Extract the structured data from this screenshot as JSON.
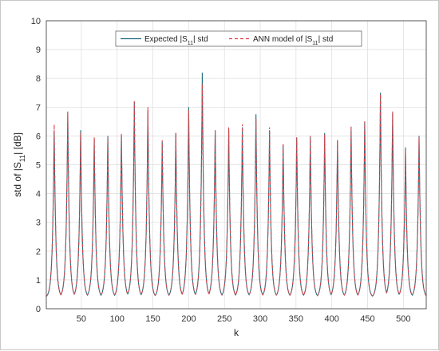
{
  "chart_data": {
    "type": "line",
    "xlabel": "k",
    "ylabel_parts": {
      "prefix": "std of |S",
      "subscript": "11",
      "suffix": "| [dB]"
    },
    "xlim": [
      1,
      532
    ],
    "ylim": [
      0,
      10
    ],
    "xticks": [
      50,
      100,
      150,
      200,
      250,
      300,
      350,
      400,
      450,
      500
    ],
    "yticks": [
      0,
      1,
      2,
      3,
      4,
      5,
      6,
      7,
      8,
      9,
      10
    ],
    "grid": true,
    "legend_position": "top-center",
    "baseline": 0.38,
    "legend": [
      {
        "prefix": "Expected |S",
        "subscript": "11",
        "suffix": "| std",
        "color": "#1f6e7e",
        "dash": "solid"
      },
      {
        "prefix": "ANN model of |S",
        "subscript": "11",
        "suffix": "| std",
        "color": "#d9444b",
        "dash": "dashed"
      }
    ],
    "peaks": [
      {
        "x": 12,
        "expected": 6.2,
        "ann": 6.4
      },
      {
        "x": 31,
        "expected": 6.8,
        "ann": 6.85
      },
      {
        "x": 49,
        "expected": 6.2,
        "ann": 6.1
      },
      {
        "x": 68,
        "expected": 5.9,
        "ann": 5.95
      },
      {
        "x": 87,
        "expected": 6.0,
        "ann": 5.95
      },
      {
        "x": 106,
        "expected": 6.0,
        "ann": 6.1
      },
      {
        "x": 124,
        "expected": 7.2,
        "ann": 7.2
      },
      {
        "x": 143,
        "expected": 6.9,
        "ann": 7.0
      },
      {
        "x": 163,
        "expected": 5.8,
        "ann": 5.85
      },
      {
        "x": 182,
        "expected": 6.1,
        "ann": 6.1
      },
      {
        "x": 200,
        "expected": 7.0,
        "ann": 6.9
      },
      {
        "x": 219,
        "expected": 8.2,
        "ann": 7.8
      },
      {
        "x": 237,
        "expected": 6.2,
        "ann": 6.2
      },
      {
        "x": 256,
        "expected": 6.2,
        "ann": 6.3
      },
      {
        "x": 275,
        "expected": 6.3,
        "ann": 6.4
      },
      {
        "x": 294,
        "expected": 6.75,
        "ann": 6.6
      },
      {
        "x": 313,
        "expected": 6.2,
        "ann": 6.3
      },
      {
        "x": 332,
        "expected": 5.7,
        "ann": 5.75
      },
      {
        "x": 351,
        "expected": 5.95,
        "ann": 5.95
      },
      {
        "x": 370,
        "expected": 5.95,
        "ann": 6.0
      },
      {
        "x": 390,
        "expected": 6.1,
        "ann": 6.05
      },
      {
        "x": 408,
        "expected": 5.85,
        "ann": 5.85
      },
      {
        "x": 427,
        "expected": 6.2,
        "ann": 6.35
      },
      {
        "x": 446,
        "expected": 6.5,
        "ann": 6.5
      },
      {
        "x": 468,
        "expected": 7.5,
        "ann": 7.45
      },
      {
        "x": 485,
        "expected": 6.8,
        "ann": 6.85
      },
      {
        "x": 503,
        "expected": 5.6,
        "ann": 5.5
      },
      {
        "x": 522,
        "expected": 6.0,
        "ann": 5.95
      }
    ]
  }
}
